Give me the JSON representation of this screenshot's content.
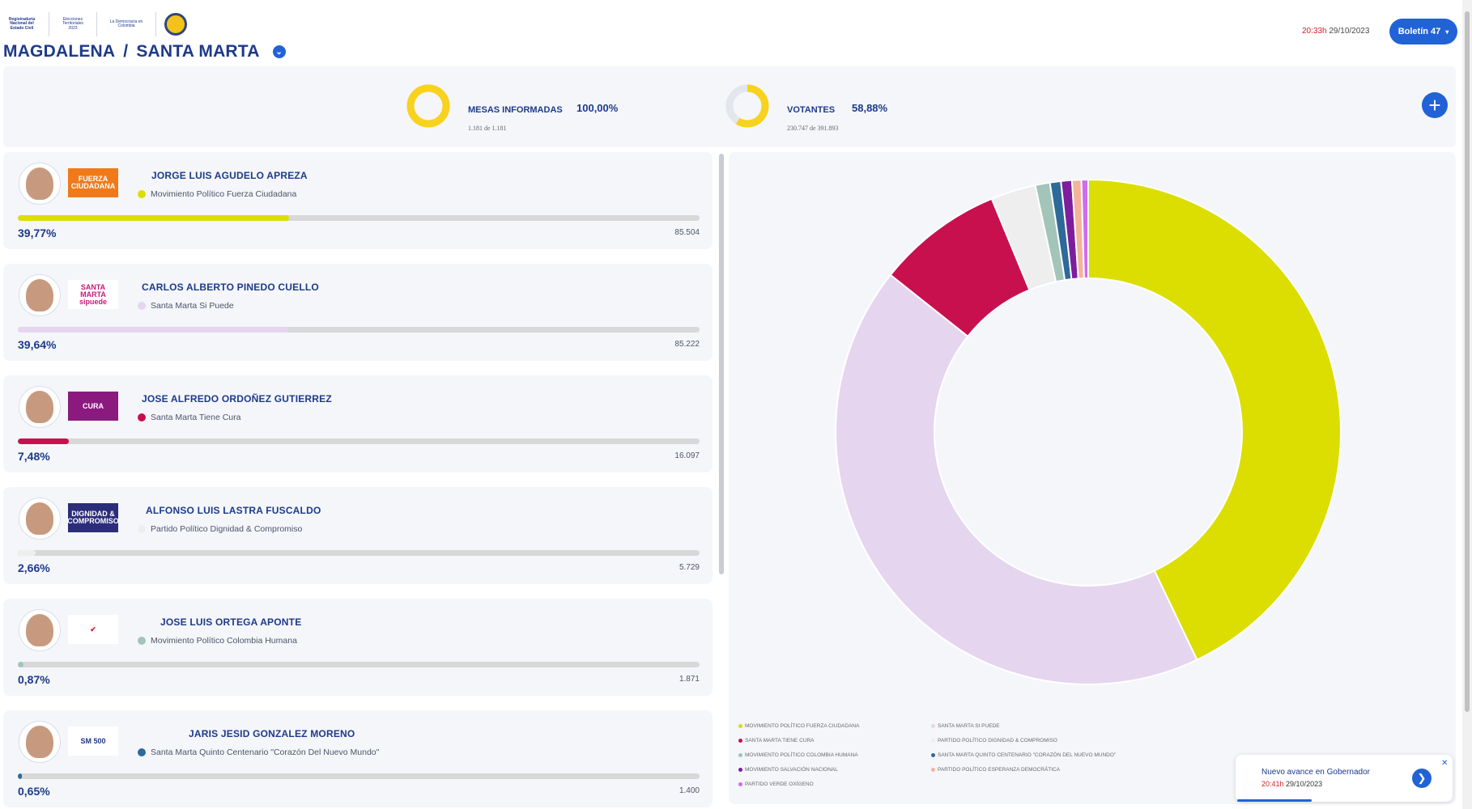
{
  "header": {
    "logos": [
      "Registraduría Nacional del Estado Civil",
      "Elecciones Territoriales 2023",
      "La Democracia en Colombia",
      "Consejo Nacional Electoral"
    ],
    "department": "MAGDALENA",
    "separator": "/",
    "municipality": "SANTA MARTA",
    "time": "20:33h",
    "date": "29/10/2023",
    "boletin_label": "Boletín 47"
  },
  "summary": {
    "mesas": {
      "label": "MESAS INFORMADAS",
      "pct": "100,00%",
      "sub": "1.181  de  1.181",
      "fraction": 1.0,
      "color": "#f8d21c"
    },
    "votantes": {
      "label": "VOTANTES",
      "pct": "58,88%",
      "sub": "230.747  de  391.893",
      "fraction": 0.5888,
      "color": "#f8d21c"
    }
  },
  "candidates": [
    {
      "name": "JORGE LUIS AGUDELO APREZA",
      "party": "Movimiento Político Fuerza Ciudadana",
      "pct": "39,77%",
      "votes": "85.504",
      "share": 0.3977,
      "color": "#dbde00",
      "logo_text": "FUERZA CIUDADANA",
      "logo_bg": "#f07a1a",
      "logo_fg": "#ffffff"
    },
    {
      "name": "CARLOS ALBERTO PINEDO CUELLO",
      "party": "Santa Marta Si Puede",
      "pct": "39,64%",
      "votes": "85.222",
      "share": 0.3964,
      "color": "#e6d5ef",
      "logo_text": "SANTA MARTA sipuede",
      "logo_bg": "#ffffff",
      "logo_fg": "#c41b7a"
    },
    {
      "name": "JOSE ALFREDO ORDOÑEZ GUTIERREZ",
      "party": "Santa Marta Tiene Cura",
      "pct": "7,48%",
      "votes": "16.097",
      "share": 0.0748,
      "color": "#c8104f",
      "logo_text": "CURA",
      "logo_bg": "#8b1a7f",
      "logo_fg": "#ffffff"
    },
    {
      "name": "ALFONSO LUIS LASTRA FUSCALDO",
      "party": "Partido Político Dignidad & Compromiso",
      "pct": "2,66%",
      "votes": "5.729",
      "share": 0.0266,
      "color": "#eeeeee",
      "logo_text": "DIGNIDAD & COMPROMISO",
      "logo_bg": "#2b2d7a",
      "logo_fg": "#ffffff"
    },
    {
      "name": "JOSE LUIS ORTEGA APONTE",
      "party": "Movimiento Político Colombia Humana",
      "pct": "0,87%",
      "votes": "1.871",
      "share": 0.0087,
      "color": "#a3c4b8",
      "logo_text": "✔",
      "logo_bg": "#ffffff",
      "logo_fg": "#d21d2b"
    },
    {
      "name": "JARIS JESID GONZALEZ MORENO",
      "party": "Santa Marta Quinto Centenario \"Corazón Del Nuevo Mundo\"",
      "pct": "0,65%",
      "votes": "1.400",
      "share": 0.0065,
      "color": "#2e6a99",
      "logo_text": "SM 500",
      "logo_bg": "#ffffff",
      "logo_fg": "#1d3a8a"
    }
  ],
  "chart_data": {
    "type": "pie",
    "labels": [
      "MOVIMIENTO POLÍTICO FUERZA CIUDADANA",
      "SANTA MARTA SI PUEDE",
      "SANTA MARTA TIENE CURA",
      "PARTIDO POLÍTICO DIGNIDAD & COMPROMISO",
      "MOVIMIENTO POLÍTICO COLOMBIA HUMANA",
      "SANTA MARTA QUINTO CENTENARIO \"CORAZÓN DEL NUEVO MUNDO\"",
      "MOVIMIENTO SALVACIÓN NACIONAL",
      "PARTIDO POLÍTICO ESPERANZA DEMOCRÁTICA",
      "PARTIDO VERDE OXÍGENO"
    ],
    "values": [
      39.77,
      39.64,
      7.48,
      2.66,
      0.87,
      0.65,
      0.65,
      0.55,
      0.4
    ],
    "colors": [
      "#dbde00",
      "#e6d5ef",
      "#c8104f",
      "#eeeeee",
      "#a3c4b8",
      "#2e6a99",
      "#7d1e9e",
      "#f3b39c",
      "#cf6cf0"
    ],
    "title": "",
    "legend": "bottom-left"
  },
  "toast": {
    "title": "Nuevo avance en Gobernador",
    "time": "20:41h",
    "date": "29/10/2023"
  }
}
